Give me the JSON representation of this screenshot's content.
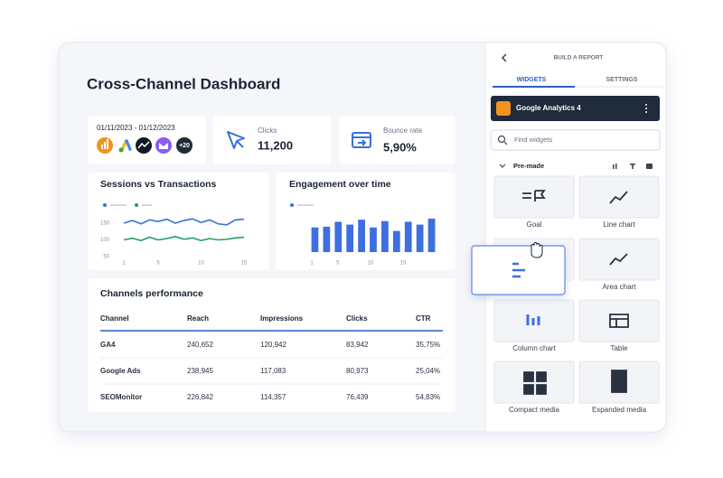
{
  "dashboard": {
    "title": "Cross-Channel Dashboard",
    "date_range": "01/11/2023 - 01/12/2023",
    "more_sources": "+20",
    "kpis": [
      {
        "label": "Clicks",
        "value": "11,200"
      },
      {
        "label": "Bounce rate",
        "value": "5,90%"
      }
    ],
    "sessions_chart": {
      "title": "Sessions vs Transactions",
      "ylim": [
        50,
        150
      ],
      "yticks": [
        150,
        100,
        50
      ],
      "xlim": [
        1,
        15
      ],
      "xticks": [
        1,
        5,
        10,
        15
      ],
      "x": [
        1,
        2,
        3,
        4,
        5,
        6,
        7,
        8,
        9,
        10,
        11,
        12,
        13,
        14,
        15
      ],
      "series": [
        {
          "color": "#3a6fd8",
          "values": [
            150,
            158,
            148,
            160,
            155,
            162,
            150,
            158,
            163,
            152,
            160,
            148,
            145,
            160,
            162
          ]
        },
        {
          "color": "#1e9e6a",
          "values": [
            100,
            105,
            98,
            108,
            100,
            104,
            110,
            102,
            106,
            98,
            104,
            100,
            102,
            106,
            108
          ]
        }
      ]
    },
    "engagement_chart": {
      "title": "Engagement over time",
      "xticks": [
        1,
        5,
        10,
        15
      ],
      "ylim": [
        0,
        100
      ],
      "color": "#3d6fe0",
      "values": [
        70,
        72,
        86,
        78,
        92,
        70,
        88,
        60,
        86,
        78,
        95
      ]
    },
    "table": {
      "title": "Channels performance",
      "columns": [
        "Channel",
        "Reach",
        "Impressions",
        "Clicks",
        "CTR"
      ],
      "rows": [
        [
          "GA4",
          "240,652",
          "120,942",
          "83,942",
          "35,75%"
        ],
        [
          "Google Ads",
          "238,945",
          "117,083",
          "80,973",
          "25,04%"
        ],
        [
          "SEOMonitor",
          "226,842",
          "114,357",
          "76,439",
          "54,83%"
        ]
      ]
    }
  },
  "panel": {
    "header": "BUILD A REPORT",
    "tabs": [
      "WIDGETS",
      "SETTINGS"
    ],
    "source": "Google Analytics 4",
    "search_placeholder": "Find widgets",
    "section": "Pre-made",
    "widgets": [
      "Goal",
      "Line chart",
      "Area chart",
      "Column chart",
      "Table",
      "Compact media",
      "Expanded media"
    ]
  }
}
